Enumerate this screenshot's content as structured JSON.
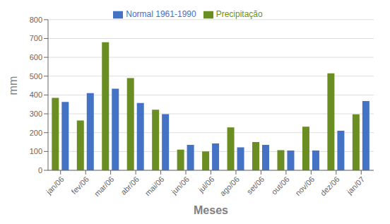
{
  "chart_data": {
    "type": "bar",
    "xlabel": "Meses",
    "ylabel": "mm",
    "categories": [
      "jan/06",
      "fev/06",
      "mar/06",
      "abr/06",
      "mai/06",
      "jun/06",
      "jul/06",
      "ago/06",
      "set/06",
      "out/06",
      "nov/06",
      "dez/06",
      "jan/07"
    ],
    "series": [
      {
        "name": "Precipitação",
        "color": "#6B8E23",
        "values": [
          385,
          265,
          680,
          490,
          322,
          110,
          100,
          228,
          150,
          107,
          232,
          515,
          297
        ]
      },
      {
        "name": "Normal 1961-1990",
        "color": "#4472C4",
        "values": [
          363,
          410,
          433,
          357,
          298,
          135,
          143,
          122,
          135,
          105,
          105,
          210,
          368
        ]
      }
    ],
    "ylim": [
      0,
      800
    ],
    "yticks": [
      0,
      100,
      200,
      300,
      400,
      500,
      600,
      700,
      800
    ],
    "grid": true,
    "legend": "top"
  }
}
